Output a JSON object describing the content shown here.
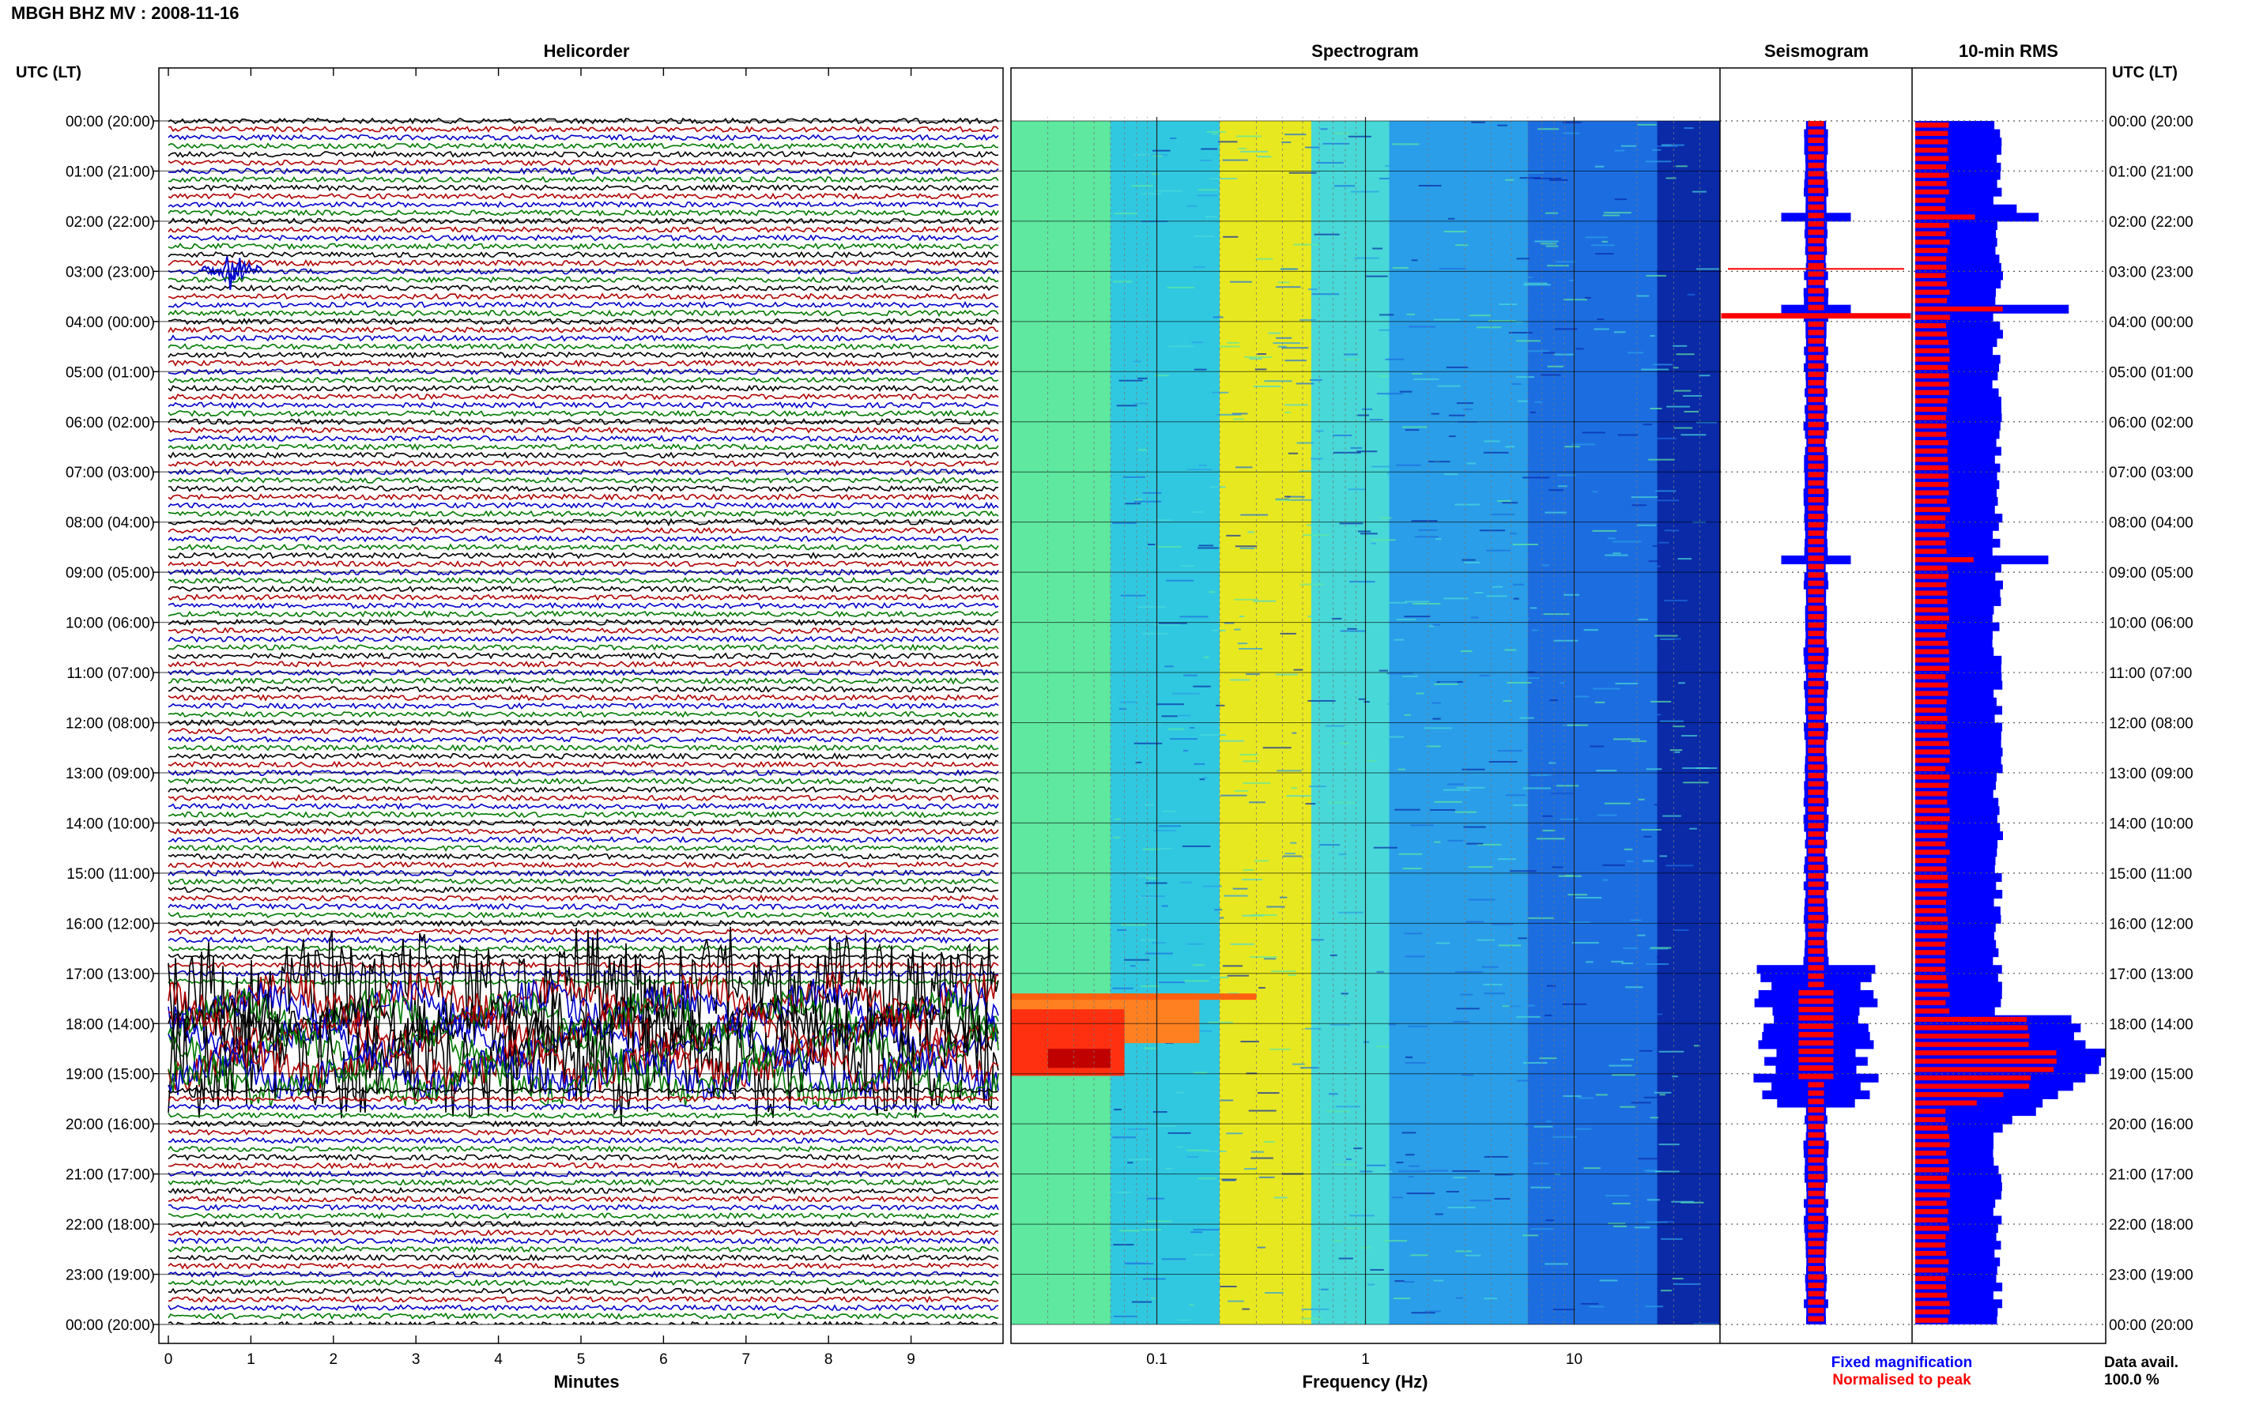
{
  "header": {
    "title": "MBGH BHZ MV : 2008-11-16"
  },
  "panels": {
    "helicorder_title": "Helicorder",
    "spectrogram_title": "Spectrogram",
    "seismogram_title": "Seismogram",
    "rms_title": "10-min RMS",
    "left_axis_title": "UTC (LT)",
    "right_axis_title": "UTC (LT)"
  },
  "legend": {
    "fixed": "Fixed magnification",
    "normalised": "Normalised to peak",
    "fixed_color": "#0000ff",
    "normalised_color": "#ff0000",
    "data_avail_label": "Data avail.",
    "data_avail_value": "100.0 %"
  },
  "chart_data": [
    {
      "type": "line",
      "name": "helicorder",
      "title": "Helicorder",
      "xlabel": "Minutes",
      "x_ticks": [
        "0",
        "1",
        "2",
        "3",
        "4",
        "5",
        "6",
        "7",
        "8",
        "9"
      ],
      "xlim": [
        0,
        10
      ],
      "row_labels": [
        "00:00 (20:00)",
        "01:00 (21:00)",
        "02:00 (22:00)",
        "03:00 (23:00)",
        "04:00 (00:00)",
        "05:00 (01:00)",
        "06:00 (02:00)",
        "07:00 (03:00)",
        "08:00 (04:00)",
        "09:00 (05:00)",
        "10:00 (06:00)",
        "11:00 (07:00)",
        "12:00 (08:00)",
        "13:00 (09:00)",
        "14:00 (10:00)",
        "15:00 (11:00)",
        "16:00 (12:00)",
        "17:00 (13:00)",
        "18:00 (14:00)",
        "19:00 (15:00)",
        "20:00 (16:00)",
        "21:00 (17:00)",
        "22:00 (18:00)",
        "23:00 (19:00)",
        "00:00 (20:00)"
      ],
      "trace_colors": [
        "#000000",
        "#b00000",
        "#0000cc",
        "#007a00"
      ],
      "lines_per_hour": 6,
      "events": [
        {
          "hour": 0.95,
          "minute_start": 4.5,
          "minute_end": 6.0,
          "color": "#007a00",
          "amplitude": 1.2
        },
        {
          "hour": 2.95,
          "minute_start": 0.6,
          "minute_end": 0.9,
          "color": "#0000cc",
          "amplitude": 4
        },
        {
          "hour": 7.95,
          "minute_start": 5.9,
          "minute_end": 7.5,
          "color": "#000000",
          "amplitude": 1.2
        },
        {
          "hour": 17.4,
          "minute_start": 0,
          "minute_end": 10,
          "color": "#000000",
          "amplitude": 3.5
        },
        {
          "hour": 18.6,
          "minute_start": 0,
          "minute_end": 10,
          "color": "#007a00",
          "amplitude": 3.5
        }
      ]
    },
    {
      "type": "heatmap",
      "name": "spectrogram",
      "title": "Spectrogram",
      "xlabel": "Frequency (Hz)",
      "x_scale": "log",
      "xlim": [
        0.02,
        50
      ],
      "x_ticks": [
        "0.1",
        "1",
        "10"
      ],
      "bands": [
        {
          "f_from": 0.02,
          "f_to": 0.06,
          "color": "#5ee8a0"
        },
        {
          "f_from": 0.06,
          "f_to": 0.2,
          "color": "#30c8e0"
        },
        {
          "f_from": 0.2,
          "f_to": 0.55,
          "color": "#e8e820"
        },
        {
          "f_from": 0.55,
          "f_to": 1.3,
          "color": "#48d8d8"
        },
        {
          "f_from": 1.3,
          "f_to": 6,
          "color": "#2a9ee8"
        },
        {
          "f_from": 6,
          "f_to": 25,
          "color": "#1c6ee0"
        },
        {
          "f_from": 25,
          "f_to": 50,
          "color": "#0a2aa8"
        }
      ],
      "event_hours": [
        17.4,
        19.2
      ]
    },
    {
      "type": "line",
      "name": "seismogram",
      "title": "Seismogram",
      "series": [
        {
          "name": "Fixed magnification",
          "color": "#0000ff"
        },
        {
          "name": "Normalised to peak",
          "color": "#ff0000"
        }
      ]
    },
    {
      "type": "bar",
      "name": "rms",
      "title": "10-min RMS",
      "bins_per_hour": 6,
      "rms": [
        4,
        4,
        4,
        4,
        4,
        4,
        4,
        4,
        4,
        4,
        5,
        7,
        4,
        4,
        4,
        4,
        4,
        4,
        4,
        4,
        4,
        4,
        8,
        4,
        4,
        4,
        4,
        4,
        4,
        4,
        4,
        4,
        4,
        4,
        4,
        4,
        4,
        4,
        4,
        4,
        4,
        4,
        4,
        4,
        4,
        4,
        4,
        4,
        4,
        4,
        4,
        4,
        7,
        4,
        4,
        4,
        4,
        4,
        4,
        4,
        4,
        4,
        4,
        4,
        4,
        4,
        4,
        4,
        4,
        4,
        4,
        4,
        4,
        4,
        4,
        4,
        4,
        4,
        4,
        4,
        4,
        4,
        4,
        4,
        4,
        4,
        4,
        4,
        4,
        4,
        4,
        4,
        4,
        4,
        4,
        4,
        4,
        4,
        4,
        4,
        4,
        4,
        4,
        4,
        4,
        4,
        4,
        9,
        9,
        9,
        9,
        10,
        10,
        10,
        9,
        9,
        8,
        7,
        6,
        5,
        4,
        4,
        4,
        4,
        4,
        4,
        4,
        4,
        4,
        4,
        4,
        4,
        4,
        4,
        4,
        4,
        4,
        4,
        4,
        4,
        4,
        4,
        4,
        4
      ],
      "rms_max": 10
    }
  ]
}
